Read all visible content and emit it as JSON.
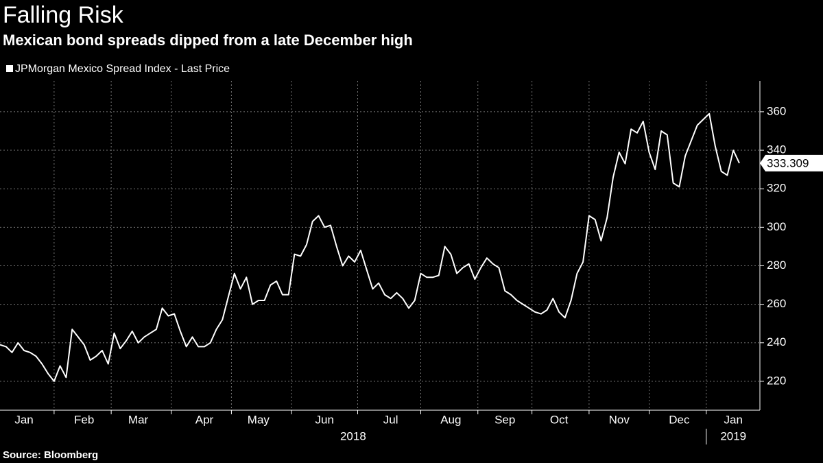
{
  "chart_data": {
    "type": "line",
    "title": "Falling Risk",
    "subtitle": "Mexican bond spreads dipped from a late December high",
    "source": "Source: Bloomberg",
    "year_labels": [
      "2018",
      "2019"
    ],
    "categories": [
      null,
      null,
      null,
      null,
      "Jan",
      null,
      null,
      null,
      null,
      null,
      null,
      null,
      null,
      null,
      "Feb",
      null,
      null,
      null,
      null,
      null,
      null,
      null,
      null,
      "Mar",
      null,
      null,
      null,
      null,
      null,
      null,
      null,
      null,
      null,
      null,
      "Apr",
      null,
      null,
      null,
      null,
      null,
      null,
      null,
      null,
      "May",
      null,
      null,
      null,
      null,
      null,
      null,
      null,
      null,
      null,
      null,
      "Jun",
      null,
      null,
      null,
      null,
      null,
      null,
      null,
      null,
      null,
      null,
      "Jul",
      null,
      null,
      null,
      null,
      null,
      null,
      null,
      null,
      null,
      "Aug",
      null,
      null,
      null,
      null,
      null,
      null,
      null,
      null,
      "Sep",
      null,
      null,
      null,
      null,
      null,
      null,
      null,
      null,
      "Oct",
      null,
      null,
      null,
      null,
      null,
      null,
      null,
      null,
      null,
      "Nov",
      null,
      null,
      null,
      null,
      null,
      null,
      null,
      null,
      null,
      "Dec",
      null,
      null,
      null,
      null,
      null,
      null,
      null,
      null,
      "Jan",
      null
    ],
    "series": [
      {
        "name": "JPMorgan Mexico Spread Index - Last Price",
        "color": "#ffffff",
        "values": [
          239,
          238,
          235,
          240,
          236,
          235,
          233,
          229,
          224,
          220,
          228,
          222,
          247,
          243,
          239,
          231,
          233,
          236,
          229,
          245,
          237,
          241,
          246,
          240,
          243,
          245,
          247,
          258,
          254,
          255,
          246,
          238,
          243,
          238,
          238,
          240,
          247,
          252,
          264,
          276,
          268,
          274,
          260,
          262,
          262,
          270,
          272,
          265,
          265,
          286,
          285,
          291,
          303,
          306,
          300,
          301,
          290,
          280,
          285,
          282,
          288,
          278,
          268,
          271,
          265,
          263,
          266,
          263,
          258,
          262,
          276,
          274,
          274,
          275,
          290,
          286,
          276,
          279,
          281,
          273,
          279,
          284,
          281,
          279,
          267,
          265,
          262,
          260,
          258,
          256,
          255,
          257,
          263,
          256,
          253,
          262,
          276,
          282,
          306,
          304,
          293,
          305,
          326,
          339,
          333,
          351,
          349,
          355,
          339,
          330,
          350,
          348,
          323,
          321,
          337,
          345,
          353,
          356,
          359,
          342,
          329,
          327,
          340,
          333.309
        ]
      }
    ],
    "ylim": [
      205,
      376
    ],
    "yticks": [
      220,
      240,
      260,
      280,
      300,
      320,
      340,
      360
    ],
    "grid": true
  }
}
